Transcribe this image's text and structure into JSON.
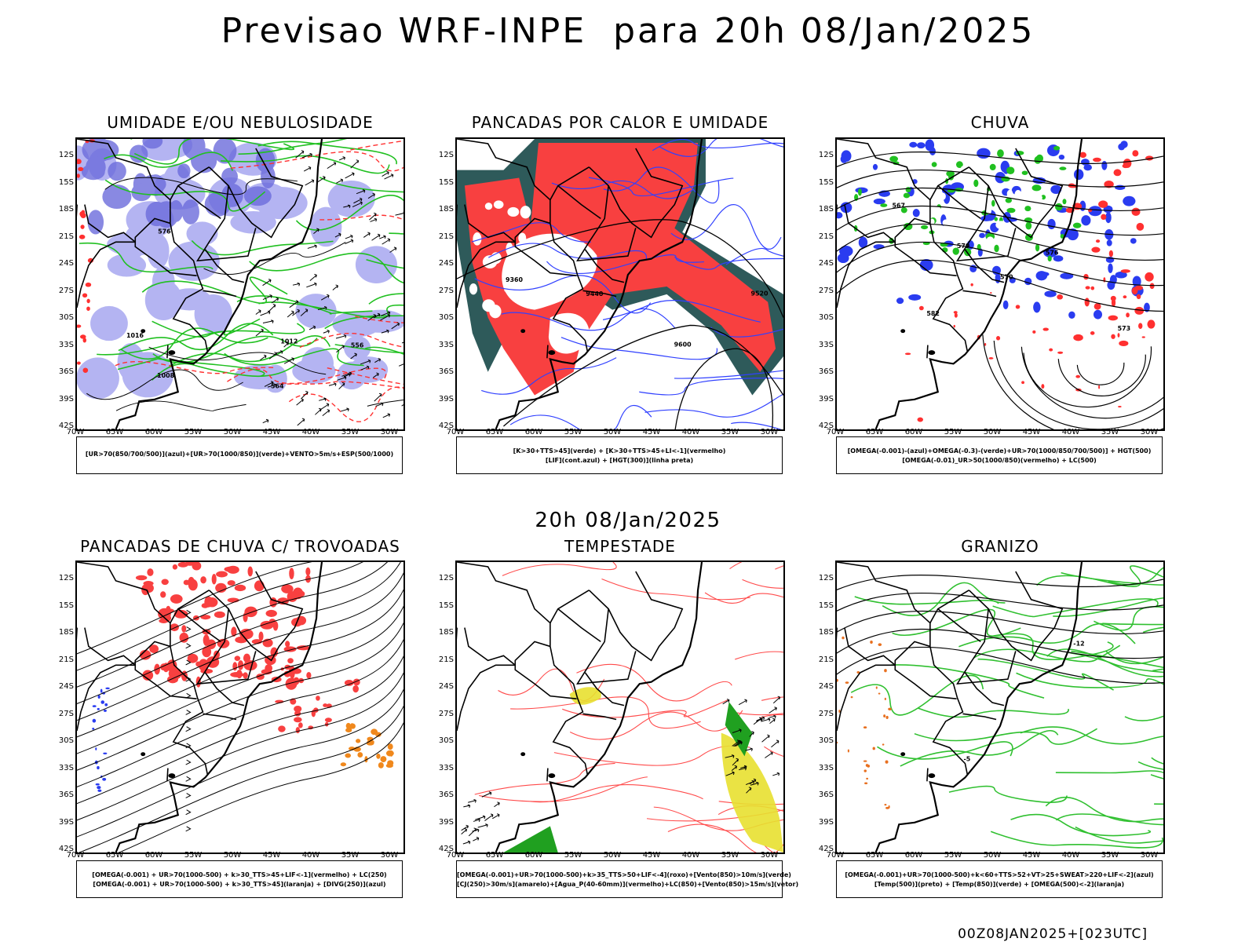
{
  "title": "Previsao WRF-INPE  para 20h 08/Jan/2025",
  "mid_date": "20h 08/Jan/2025",
  "footer": "00Z08JAN2025+[023UTC]",
  "lat_labels": [
    "12S",
    "15S",
    "18S",
    "21S",
    "24S",
    "27S",
    "30S",
    "33S",
    "36S",
    "39S",
    "42S"
  ],
  "lon_labels": [
    "70W",
    "65W",
    "60W",
    "55W",
    "50W",
    "45W",
    "40W",
    "35W",
    "30W"
  ],
  "panels": [
    {
      "title": "UMIDADE E/OU NEBULOSIDADE",
      "legend": [
        "[UR>70(850/700/500)](azul)+[UR>70(1000/850)](verde)+VENTO>5m/s+ESP(500/1000)"
      ],
      "contour_labels": [
        "1008",
        "1012",
        "1016",
        "576",
        "564",
        "556"
      ]
    },
    {
      "title": "PANCADAS POR CALOR E UMIDADE",
      "legend": [
        "[K>30+TTS>45](verde) + [K>30+TTS>45+LI<-1](vermelho)",
        "[LIF](cont.azul) + [HGT(300)](linha preta)"
      ],
      "contour_labels": [
        "9600",
        "9520",
        "9440",
        "9360"
      ]
    },
    {
      "title": "CHUVA",
      "legend": [
        "[OMEGA(-0.001)-(azul)+OMEGA(-0.3)-(verde)+UR>70(1000/850/700/500)] + HGT(500)",
        "[OMEGA(-0.01)_UR>50(1000/850)(vermelho) + LC(500)"
      ],
      "contour_labels": [
        "582",
        "579",
        "576",
        "573",
        "570",
        "567"
      ]
    },
    {
      "title": "PANCADAS DE CHUVA C/ TROVOADAS",
      "legend": [
        "[OMEGA(-0.001) + UR>70(1000-500) + k>30_TTS>45+LIF<-1](vermelho) + LC(250)",
        "[OMEGA(-0.001) + UR>70(1000-500) + k>30_TTS>45](laranja) + [DIVG(250)](azul)"
      ],
      "contour_labels": []
    },
    {
      "title": "TEMPESTADE",
      "legend": [
        "[OMEGA(-0.001)+UR>70(1000-500)+k>35_TTS>50+LIF<-4](roxo)+[Vento(850)>10m/s](verde)",
        "[CJ(250)>30m/s](amarelo)+[Agua_P(40-60mm)](vermelho)+LC(850)+[Vento(850)>15m/s](vetor)"
      ],
      "contour_labels": []
    },
    {
      "title": "GRANIZO",
      "legend": [
        "[OMEGA(-0.001)+UR>70(1000-500)+k<60+TTS>52+VT>25+SWEAT>220+LIF<-2](azul)",
        "[Temp(500)](preto) + [Temp(850)](verde) + [OMEGA(500)<-2](laranja)"
      ],
      "contour_labels": [
        "-12",
        "-5"
      ]
    }
  ]
}
